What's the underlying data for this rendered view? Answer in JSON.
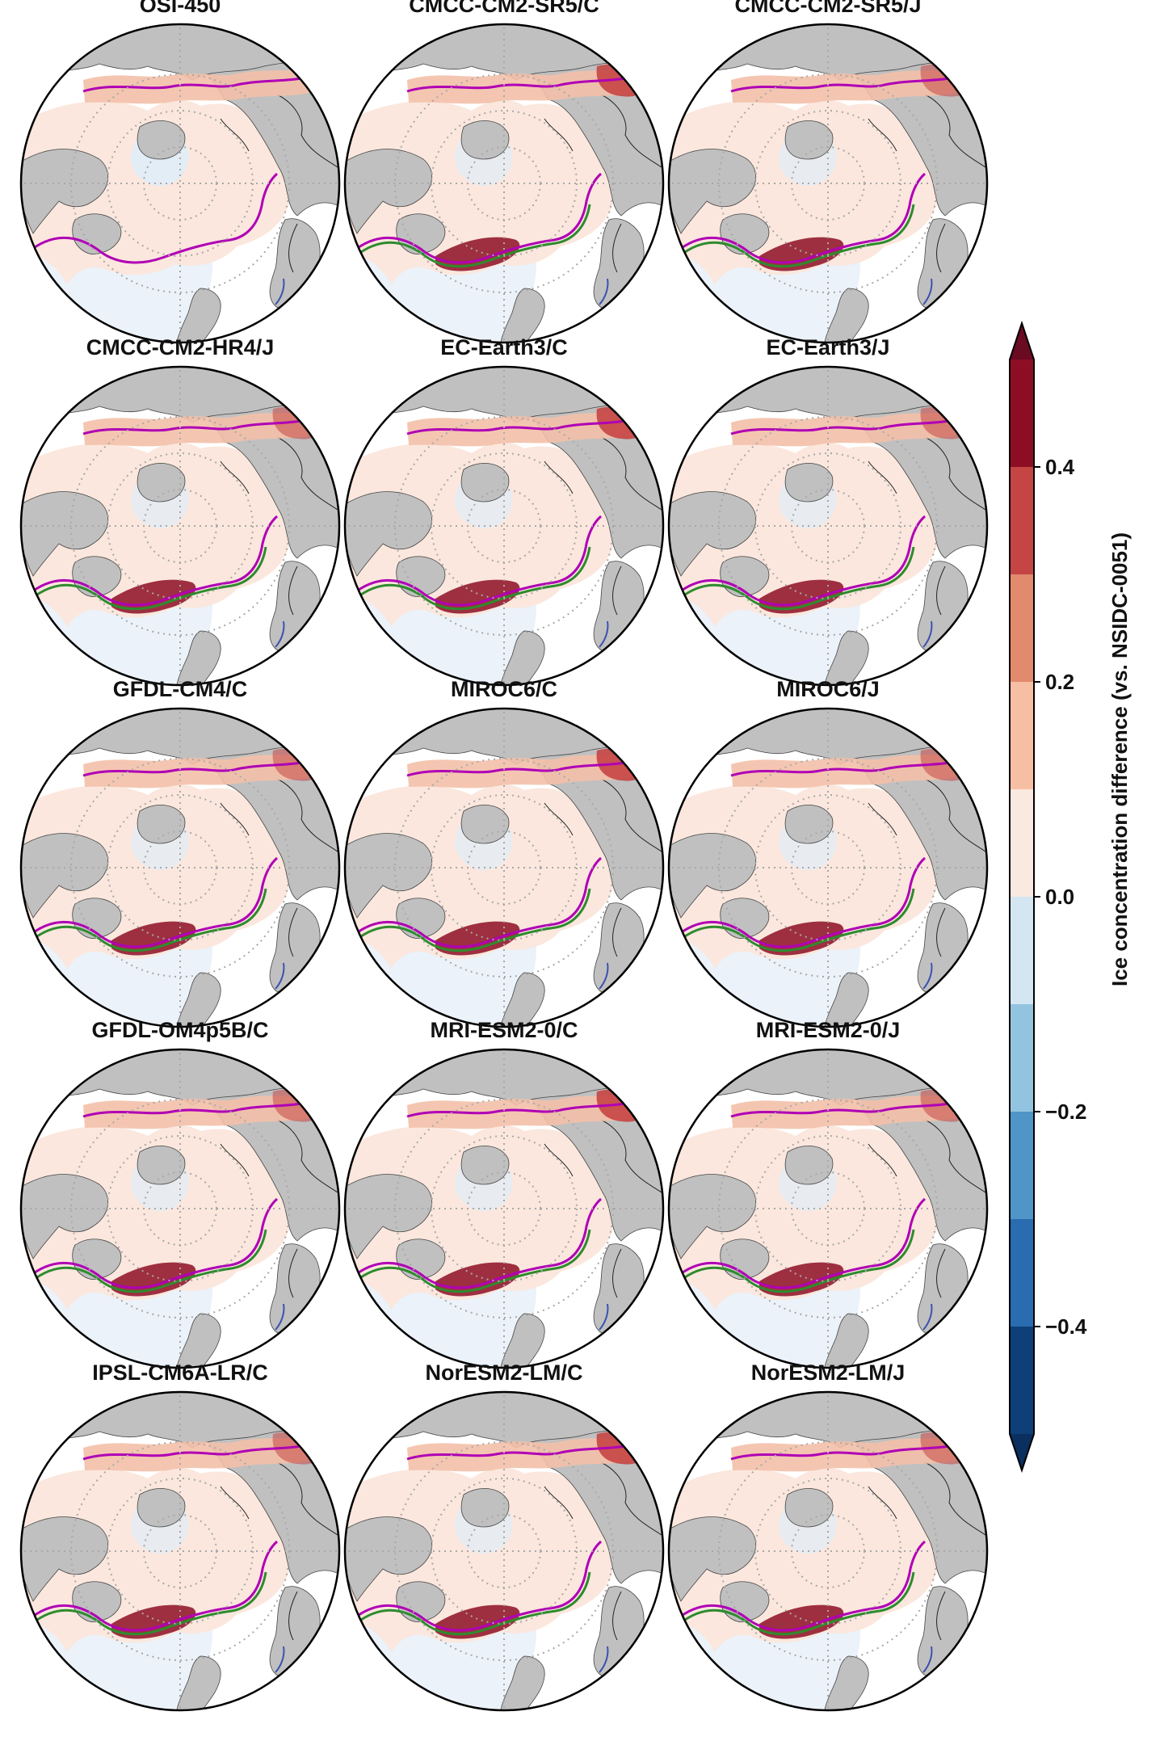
{
  "figure": {
    "panels": [
      {
        "title": "OSI-450"
      },
      {
        "title": "CMCC-CM2-SR5/C"
      },
      {
        "title": "CMCC-CM2-SR5/J"
      },
      {
        "title": "CMCC-CM2-HR4/J"
      },
      {
        "title": "EC-Earth3/C"
      },
      {
        "title": "EC-Earth3/J"
      },
      {
        "title": "GFDL-CM4/C"
      },
      {
        "title": "MIROC6/C"
      },
      {
        "title": "MIROC6/J"
      },
      {
        "title": "GFDL-OM4p5B/C"
      },
      {
        "title": "MRI-ESM2-0/C"
      },
      {
        "title": "MRI-ESM2-0/J"
      },
      {
        "title": "IPSL-CM6A-LR/C"
      },
      {
        "title": "NorESM2-LM/C"
      },
      {
        "title": "NorESM2-LM/J"
      }
    ],
    "colorbar": {
      "label": "Ice concentration difference (vs. NSIDC-0051)",
      "levels": [
        -0.5,
        -0.4,
        -0.3,
        -0.2,
        -0.1,
        0.0,
        0.1,
        0.2,
        0.3,
        0.4,
        0.5
      ],
      "colors": [
        "#0e3f78",
        "#2a6cb0",
        "#4f95c8",
        "#93c4df",
        "#d4e6f1",
        "#f9e9e1",
        "#f6bfa4",
        "#e28a6e",
        "#c54544",
        "#8d0e24"
      ],
      "extend_low_color": "#0b2f5f",
      "extend_high_color": "#6a0b22",
      "ticks": [
        {
          "value": 0.4,
          "label": "0.4"
        },
        {
          "value": 0.2,
          "label": "0.2"
        },
        {
          "value": 0.0,
          "label": "0.0"
        },
        {
          "value": -0.2,
          "label": "−0.2"
        },
        {
          "value": -0.4,
          "label": "−0.4"
        }
      ]
    },
    "colors": {
      "land": "#c0c0c0",
      "ocean": "#ffffff",
      "ice_positive": "#fbe7dd",
      "ice_negative": "#e3edf6",
      "edge_model": "#b000b5",
      "edge_obs": "#2e8b2e",
      "edge_alt": "#3c52b0",
      "grid": "#a8a8a8",
      "strong_positive": "#8d0e24"
    }
  }
}
